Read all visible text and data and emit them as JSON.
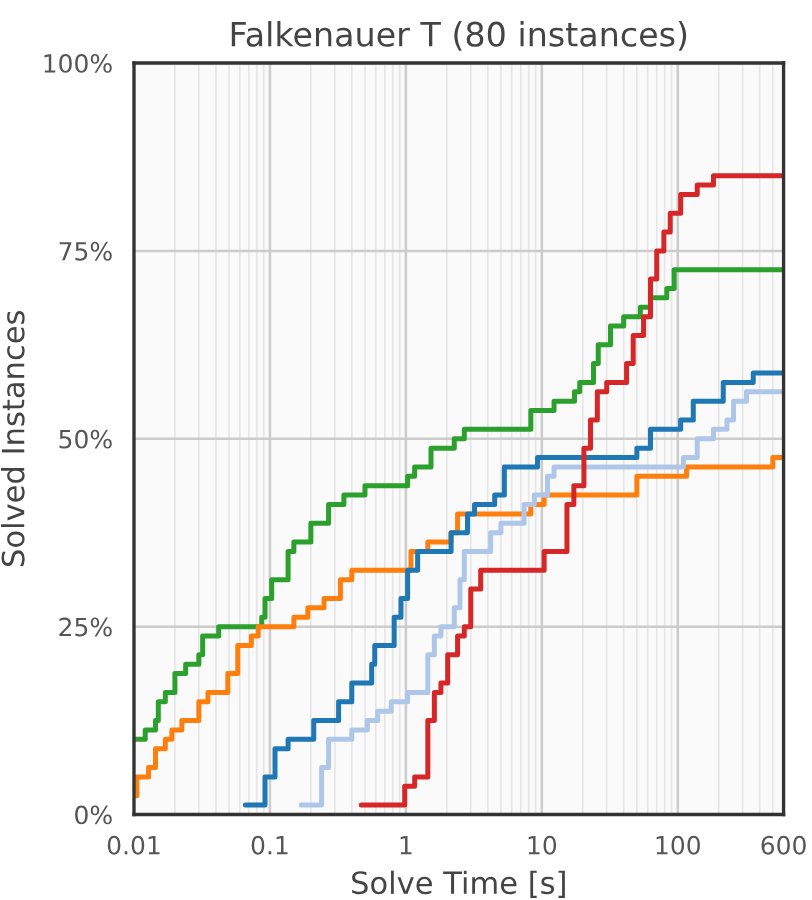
{
  "chart_data": {
    "type": "step",
    "title": "Falkenauer T (80 instances)",
    "xlabel": "Solve Time [s]",
    "ylabel": "Solved Instances",
    "log": "x",
    "grid": true,
    "legend": false,
    "xlim": [
      0.01,
      600
    ],
    "xticks": [
      0.01,
      0.1,
      1,
      10,
      100,
      600
    ],
    "ylim": [
      0,
      100
    ],
    "yticks": [
      {
        "value": 0,
        "label": "0%"
      },
      {
        "value": 25,
        "label": "25%"
      },
      {
        "value": 50,
        "label": "50%"
      },
      {
        "value": 75,
        "label": "75%"
      },
      {
        "value": 100,
        "label": "100%"
      }
    ],
    "series": [
      {
        "color": "#2ca02c",
        "x": [
          0.01,
          0.0121,
          0.0144,
          0.0151,
          0.017,
          0.02,
          0.024,
          0.03,
          0.032,
          0.042,
          0.052,
          0.087,
          0.092,
          0.103,
          0.136,
          0.15,
          0.2,
          0.27,
          0.35,
          0.5,
          1.03,
          1.16,
          1.53,
          2.27,
          2.69,
          8.3,
          12.3,
          17.4,
          19,
          24,
          26,
          32,
          40,
          53,
          63,
          83,
          94,
          600
        ],
        "values": [
          10,
          11.25,
          12.5,
          15,
          16.25,
          18.75,
          20,
          21.25,
          23.75,
          25,
          25,
          26.25,
          28.75,
          31.25,
          35,
          36.25,
          38.75,
          41.25,
          42.5,
          43.75,
          45,
          46.25,
          48.75,
          50,
          51.25,
          53.75,
          55,
          56.25,
          57.5,
          60,
          62.5,
          65,
          66.25,
          67.5,
          68.75,
          70,
          72.5,
          72.5
        ]
      },
      {
        "color": "#ff7f0e",
        "x": [
          0.01,
          0.0105,
          0.0128,
          0.0144,
          0.017,
          0.019,
          0.0225,
          0.03,
          0.035,
          0.049,
          0.058,
          0.073,
          0.082,
          0.15,
          0.19,
          0.25,
          0.33,
          0.4,
          1.09,
          1.45,
          2.15,
          2.4,
          8.3,
          10.4,
          50,
          116,
          500,
          600
        ],
        "values": [
          2.5,
          5,
          6.25,
          8.75,
          10,
          11.25,
          12.5,
          15,
          16.25,
          18.75,
          22.5,
          23.75,
          25,
          26.25,
          27.5,
          28.75,
          31.25,
          32.5,
          35,
          36.25,
          37.5,
          40,
          41.25,
          42.5,
          45,
          46.25,
          47.5,
          47.5
        ]
      },
      {
        "color": "#1f77b4",
        "x": [
          0.066,
          0.092,
          0.109,
          0.136,
          0.21,
          0.32,
          0.4,
          0.56,
          0.59,
          0.82,
          0.92,
          1.03,
          1.22,
          2.15,
          2.84,
          3.2,
          4.5,
          5.3,
          9.3,
          50,
          63,
          105,
          130,
          216,
          359,
          600
        ],
        "values": [
          1.25,
          5,
          8.75,
          10,
          12.5,
          15,
          17.5,
          20,
          22.5,
          26.25,
          28.75,
          32.5,
          35,
          37.5,
          40,
          41.25,
          42.5,
          46.25,
          47.5,
          48.75,
          51.25,
          52.5,
          55,
          57.5,
          58.75,
          58.75
        ]
      },
      {
        "color": "#aec7e8",
        "x": [
          0.17,
          0.24,
          0.27,
          0.4,
          0.52,
          0.62,
          0.78,
          1.03,
          1.45,
          1.62,
          1.81,
          2.27,
          2.5,
          2.69,
          4.2,
          5.0,
          7.4,
          8.8,
          11,
          12.3,
          110,
          139,
          183,
          230,
          257,
          320,
          600
        ],
        "values": [
          1.25,
          6.25,
          10,
          11.25,
          12.5,
          13.75,
          15,
          16.25,
          21.25,
          23.75,
          25,
          27.5,
          31.25,
          35,
          37.5,
          38.75,
          41.25,
          42.5,
          45,
          46.25,
          47.5,
          50,
          51.25,
          52.5,
          55,
          56.25,
          56.25
        ]
      },
      {
        "color": "#d62728",
        "x": [
          0.47,
          0.98,
          1.16,
          1.45,
          1.62,
          1.81,
          2.03,
          2.4,
          2.69,
          3.0,
          3.55,
          10.4,
          15.3,
          17.2,
          20.4,
          22.8,
          25.6,
          30,
          42,
          47,
          56,
          63,
          70,
          79,
          88,
          105,
          139,
          183,
          600
        ],
        "values": [
          1.25,
          3.75,
          5,
          12.5,
          16.25,
          17.5,
          21.25,
          23.75,
          25,
          30,
          32.5,
          35,
          41.25,
          43.75,
          48.75,
          52.5,
          56.25,
          57.5,
          60,
          63.75,
          66.25,
          71.25,
          75,
          77.5,
          80,
          82.5,
          83.75,
          85,
          85
        ]
      }
    ]
  }
}
